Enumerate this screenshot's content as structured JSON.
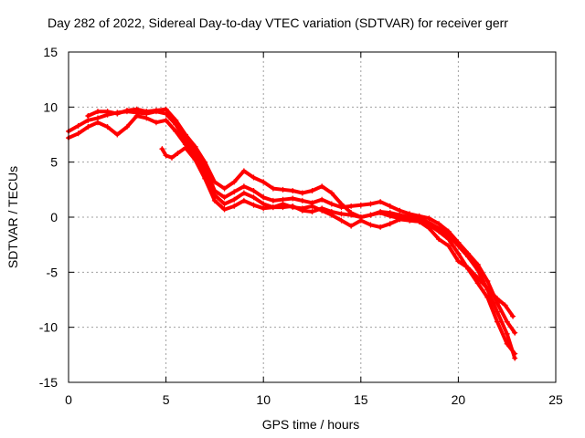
{
  "chart_data": {
    "type": "line",
    "title": "Day 282 of 2022, Sidereal Day-to-day VTEC variation (SDTVAR) for receiver gerr",
    "xlabel": "GPS time / hours",
    "ylabel": "SDTVAR / TECUs",
    "xlim": [
      0,
      25
    ],
    "ylim": [
      -15,
      15
    ],
    "x_ticks": [
      "0",
      "5",
      "10",
      "15",
      "20",
      "25"
    ],
    "y_ticks": [
      "-15",
      "-10",
      "-5",
      "0",
      "5",
      "10",
      "15"
    ],
    "x_tick_values": [
      0,
      5,
      10,
      15,
      20,
      25
    ],
    "y_tick_values": [
      -15,
      -10,
      -5,
      0,
      5,
      10,
      15
    ],
    "grid": true,
    "marker": "+",
    "color": "#ff0000",
    "series": [
      {
        "name": "track-1",
        "x": [
          0.0,
          0.5,
          1.0,
          1.5,
          2.0,
          2.5,
          3.0,
          3.5,
          4.0,
          4.5,
          5.0,
          5.5,
          6.0,
          6.5,
          7.0,
          7.5,
          8.0,
          8.5,
          9.0,
          9.5,
          10.0,
          10.5,
          11.0,
          11.5,
          12.0,
          12.5,
          13.0,
          13.5,
          14.0,
          14.5,
          15.0,
          15.5,
          16.0,
          16.5,
          17.0,
          17.5,
          18.0,
          18.5,
          19.0,
          19.5,
          20.0,
          20.5,
          21.0,
          21.5,
          22.0,
          22.5,
          22.9
        ],
        "y": [
          7.8,
          8.3,
          8.8,
          9.0,
          9.3,
          9.5,
          9.6,
          9.5,
          9.4,
          9.6,
          9.4,
          8.4,
          7.0,
          6.0,
          4.5,
          2.4,
          1.8,
          2.3,
          2.8,
          2.4,
          1.8,
          1.5,
          1.6,
          1.7,
          1.5,
          1.3,
          1.6,
          1.2,
          0.9,
          1.0,
          1.1,
          1.2,
          1.4,
          1.0,
          0.6,
          0.3,
          0.1,
          -0.1,
          -0.6,
          -1.3,
          -2.3,
          -3.3,
          -4.3,
          -5.8,
          -7.8,
          -9.5,
          -10.5
        ]
      },
      {
        "name": "track-2",
        "x": [
          0.0,
          0.5,
          1.0,
          1.5,
          2.0,
          2.5,
          3.0,
          3.5,
          4.0,
          4.5,
          5.0,
          5.5,
          6.0,
          6.5,
          7.0,
          7.5,
          8.0,
          8.5,
          9.0,
          9.5,
          10.0,
          10.5,
          11.0,
          11.5,
          12.0,
          12.5,
          13.0,
          13.5,
          14.0,
          14.5,
          15.0,
          15.5,
          16.0,
          16.5,
          17.0,
          17.5,
          18.0,
          18.5,
          19.0,
          19.5,
          20.0,
          20.5,
          21.0,
          21.5,
          22.0,
          22.5,
          22.9
        ],
        "y": [
          7.2,
          7.6,
          8.2,
          8.6,
          8.2,
          7.5,
          8.2,
          9.2,
          9.0,
          8.6,
          8.8,
          7.8,
          6.6,
          5.6,
          4.0,
          2.0,
          1.2,
          1.6,
          2.2,
          1.8,
          1.2,
          0.9,
          0.9,
          1.0,
          0.6,
          0.5,
          0.8,
          0.5,
          0.3,
          0.2,
          0.0,
          0.2,
          0.4,
          0.1,
          -0.1,
          -0.3,
          -0.4,
          -0.7,
          -1.3,
          -2.0,
          -3.3,
          -4.7,
          -6.0,
          -7.3,
          -9.5,
          -11.5,
          -12.4
        ]
      },
      {
        "name": "track-3",
        "x": [
          1.0,
          1.5,
          2.0,
          2.5,
          3.0,
          3.5,
          4.0,
          4.5,
          5.0,
          5.5,
          6.0,
          6.5,
          7.0,
          7.5,
          8.0,
          8.5,
          9.0,
          9.5,
          10.0,
          10.5,
          11.0,
          11.5,
          12.0,
          12.5,
          13.0,
          13.5,
          14.0,
          14.5,
          15.0,
          15.5,
          16.0,
          16.5,
          17.0,
          17.5,
          18.0,
          18.5,
          19.0,
          19.5,
          20.0,
          20.5,
          21.0,
          21.5,
          22.0,
          22.5,
          22.9
        ],
        "y": [
          9.2,
          9.6,
          9.6,
          9.4,
          9.7,
          9.8,
          9.6,
          9.7,
          9.8,
          8.8,
          7.5,
          6.4,
          5.0,
          3.2,
          2.6,
          3.2,
          4.2,
          3.6,
          3.2,
          2.6,
          2.5,
          2.4,
          2.2,
          2.4,
          2.8,
          2.2,
          1.2,
          0.4,
          0.0,
          0.2,
          0.5,
          0.4,
          0.2,
          0.0,
          -0.1,
          -0.5,
          -1.0,
          -1.6,
          -2.6,
          -3.6,
          -4.8,
          -6.6,
          -8.6,
          -10.6,
          -12.8
        ]
      },
      {
        "name": "track-4",
        "x": [
          4.8,
          5.0,
          5.3,
          5.6,
          6.0,
          6.5,
          7.0,
          7.5,
          8.0,
          8.5,
          9.0,
          9.5,
          10.0,
          10.5,
          11.0,
          11.5,
          12.0,
          12.5,
          13.0,
          13.5,
          14.0,
          14.5,
          15.0,
          15.5,
          16.0,
          16.5,
          17.0,
          17.5,
          18.0,
          18.5,
          19.0,
          19.5,
          20.0,
          20.5,
          21.0,
          21.5,
          22.0,
          22.4,
          22.8
        ],
        "y": [
          6.2,
          5.6,
          5.4,
          5.8,
          6.3,
          5.2,
          3.5,
          1.5,
          0.7,
          1.0,
          1.5,
          1.1,
          0.8,
          0.9,
          1.2,
          0.9,
          0.8,
          1.0,
          0.6,
          0.2,
          -0.3,
          -0.8,
          -0.3,
          -0.7,
          -0.9,
          -0.6,
          -0.2,
          -0.3,
          -0.4,
          -1.0,
          -2.0,
          -2.6,
          -4.0,
          -4.6,
          -5.5,
          -6.5,
          -7.4,
          -8.0,
          -9.0
        ]
      }
    ]
  }
}
